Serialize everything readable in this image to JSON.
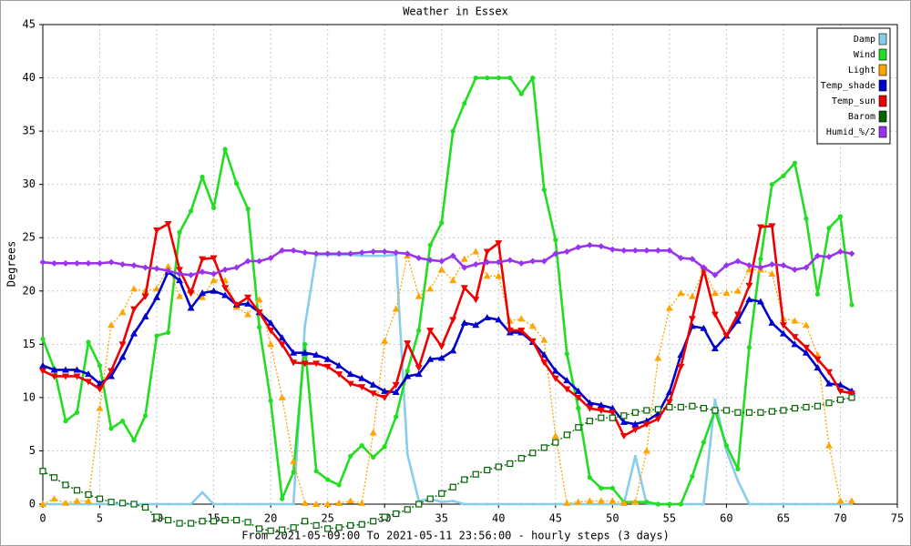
{
  "chart_data": {
    "type": "line",
    "title": "Weather in Essex",
    "y_label": "Degrees",
    "x_label": "From 2021-05-09:00 To 2021-05-11 23:56:00 - hourly steps (3 days)",
    "x": [
      0,
      1,
      2,
      3,
      4,
      5,
      6,
      7,
      8,
      9,
      10,
      11,
      12,
      13,
      14,
      15,
      16,
      17,
      18,
      19,
      20,
      21,
      22,
      23,
      24,
      25,
      26,
      27,
      28,
      29,
      30,
      31,
      32,
      33,
      34,
      35,
      36,
      37,
      38,
      39,
      40,
      41,
      42,
      43,
      44,
      45,
      46,
      47,
      48,
      49,
      50,
      51,
      52,
      53,
      54,
      55,
      56,
      57,
      58,
      59,
      60,
      61,
      62,
      63,
      64,
      65,
      66,
      67,
      68,
      69,
      70,
      71
    ],
    "xlim": [
      0,
      75
    ],
    "xticks": [
      0,
      5,
      10,
      15,
      20,
      25,
      30,
      35,
      40,
      45,
      50,
      55,
      60,
      65,
      70,
      75
    ],
    "ylim": [
      0,
      45
    ],
    "yticks": [
      0,
      5,
      10,
      15,
      20,
      25,
      30,
      35,
      40,
      45
    ],
    "grid": true,
    "legend": "top-right",
    "series": [
      {
        "name": "Damp",
        "color": "#87ceeb",
        "marker": "dot",
        "dashed": false,
        "values": [
          0,
          0,
          0,
          0,
          0,
          0,
          0,
          0,
          0,
          0,
          0,
          0,
          0,
          0,
          1.1,
          0,
          0,
          0,
          0,
          0,
          0,
          0,
          0,
          16.7,
          23.4,
          23.4,
          23.4,
          23.4,
          23.3,
          23.3,
          23.3,
          23.4,
          4.7,
          0.3,
          0.5,
          0.2,
          0.3,
          0,
          0,
          0,
          0,
          0,
          0,
          0,
          0,
          0,
          0,
          0,
          0,
          0,
          0,
          0,
          4.5,
          0,
          0,
          0,
          0,
          0,
          0,
          9.8,
          5,
          2.2,
          0,
          0,
          0,
          0,
          0,
          0,
          0,
          0,
          0,
          0
        ]
      },
      {
        "name": "Wind",
        "color": "#22dd22",
        "marker": "circle",
        "dashed": false,
        "values": [
          15.5,
          12.7,
          7.8,
          8.6,
          15.2,
          13,
          7.1,
          7.8,
          6,
          8.3,
          15.8,
          16.1,
          25.5,
          27.5,
          30.7,
          27.8,
          33.3,
          30.1,
          27.7,
          16.6,
          9.7,
          0.5,
          3,
          15,
          3.1,
          2.3,
          1.8,
          4.5,
          5.5,
          4.4,
          5.4,
          8.2,
          12.5,
          16.3,
          24.3,
          26.4,
          35,
          37.6,
          40,
          40,
          40,
          40,
          38.5,
          40,
          29.5,
          24.8,
          14.1,
          9,
          2.5,
          1.5,
          1.5,
          0.2,
          0.2,
          0.2,
          0,
          0,
          0,
          2.6,
          5.8,
          8.8,
          5.5,
          3.3,
          14.7,
          23,
          30,
          30.8,
          32,
          26.8,
          19.7,
          25.9,
          27,
          18.7
        ]
      },
      {
        "name": "Light",
        "color": "#ffa500",
        "marker": "up",
        "dashed": true,
        "values": [
          0,
          0.5,
          0.1,
          0.3,
          0.3,
          9,
          16.8,
          18,
          20.2,
          20,
          20.2,
          22.3,
          19.5,
          20,
          19.4,
          21,
          21,
          18.5,
          17.8,
          19.2,
          15,
          10,
          4,
          0.1,
          0,
          0,
          0.1,
          0.3,
          0.1,
          6.7,
          15.3,
          18.3,
          23.3,
          19.5,
          20.2,
          22,
          21,
          23,
          23.7,
          21.4,
          21.4,
          17.2,
          17.4,
          16.7,
          15.4,
          6.4,
          0.1,
          0.2,
          0.3,
          0.3,
          0.3,
          0.1,
          0.2,
          5,
          13.7,
          18.4,
          19.8,
          19.5,
          22,
          19.8,
          19.8,
          20,
          22,
          22,
          21.6,
          17.4,
          17.2,
          16.8,
          14,
          5.5,
          0.3,
          0.3
        ]
      },
      {
        "name": "Temp_shade",
        "color": "#0000cc",
        "marker": "up",
        "dashed": false,
        "values": [
          13,
          12.6,
          12.6,
          12.6,
          12.2,
          11.3,
          12,
          13.8,
          16,
          17.6,
          19.4,
          21.8,
          21,
          18.4,
          19.8,
          20,
          19.6,
          18.7,
          18.8,
          18,
          17,
          15.6,
          14.2,
          14.2,
          14,
          13.6,
          13,
          12.2,
          11.8,
          11.2,
          10.6,
          10.5,
          12,
          12.2,
          13.6,
          13.7,
          14.4,
          17,
          16.8,
          17.5,
          17.3,
          16.1,
          16.1,
          15.2,
          14,
          12.5,
          11.6,
          10.6,
          9.5,
          9.3,
          9,
          7.7,
          7.5,
          7.8,
          8.5,
          10.5,
          14,
          16.7,
          16.5,
          14.6,
          15.8,
          17.2,
          19.2,
          19,
          17,
          16,
          15,
          14.2,
          12.8,
          11.3,
          11.2,
          10.6
        ]
      },
      {
        "name": "Temp_sun",
        "color": "#ee0000",
        "marker": "down",
        "dashed": false,
        "values": [
          12.5,
          12,
          12,
          12,
          11.5,
          10.8,
          12.5,
          15,
          18.3,
          19.5,
          25.7,
          26.3,
          22,
          19.8,
          23,
          23.1,
          20.3,
          18.7,
          19.4,
          18,
          16.3,
          15,
          13.3,
          13.2,
          13.2,
          12.9,
          12.2,
          11.3,
          11,
          10.4,
          10,
          11.2,
          15.1,
          12.8,
          16.3,
          14.8,
          17.3,
          20.3,
          19.2,
          23.7,
          24.5,
          16.3,
          16.3,
          15.3,
          13.3,
          11.8,
          10.8,
          10,
          9,
          8.8,
          8.6,
          6.4,
          7,
          7.5,
          8,
          9.6,
          12.9,
          17.4,
          22,
          17.8,
          15.8,
          17.8,
          20.5,
          26,
          26.1,
          16.8,
          15.7,
          14.7,
          13.6,
          12.4,
          10.6,
          10.4
        ]
      },
      {
        "name": "Barom",
        "color": "#006400",
        "marker": "square",
        "dashed": true,
        "values": [
          3.1,
          2.5,
          1.8,
          1.3,
          0.9,
          0.5,
          0.2,
          0.1,
          0,
          -0.3,
          -1.2,
          -1.5,
          -1.8,
          -1.8,
          -1.6,
          -1.6,
          -1.5,
          -1.5,
          -1.7,
          -2.3,
          -2.5,
          -2.4,
          -2.2,
          -1.6,
          -2,
          -2.3,
          -2.2,
          -2,
          -1.9,
          -1.6,
          -1.2,
          -0.9,
          -0.5,
          0,
          0.5,
          1,
          1.6,
          2.3,
          2.8,
          3.2,
          3.5,
          3.8,
          4.3,
          4.8,
          5.3,
          5.8,
          6.5,
          7.2,
          7.8,
          8.1,
          8.1,
          8.3,
          8.6,
          8.8,
          8.9,
          9.1,
          9.1,
          9.2,
          9,
          8.8,
          8.8,
          8.6,
          8.6,
          8.6,
          8.7,
          8.8,
          9,
          9.1,
          9.2,
          9.5,
          9.8,
          10
        ]
      },
      {
        "name": "Humid_%/2",
        "color": "#9933ee",
        "marker": "diamond",
        "dashed": false,
        "values": [
          22.7,
          22.6,
          22.6,
          22.6,
          22.6,
          22.6,
          22.7,
          22.5,
          22.4,
          22.2,
          22.1,
          21.9,
          21.6,
          21.5,
          21.8,
          21.6,
          22,
          22.2,
          22.8,
          22.8,
          23.1,
          23.8,
          23.8,
          23.6,
          23.5,
          23.5,
          23.5,
          23.5,
          23.6,
          23.7,
          23.7,
          23.6,
          23.5,
          23.1,
          22.9,
          22.8,
          23.3,
          22.2,
          22.5,
          22.7,
          22.7,
          22.9,
          22.6,
          22.8,
          22.8,
          23.5,
          23.7,
          24.1,
          24.3,
          24.2,
          23.9,
          23.8,
          23.8,
          23.8,
          23.8,
          23.8,
          23.1,
          23,
          22.2,
          21.5,
          22.4,
          22.8,
          22.4,
          22.2,
          22.5,
          22.4,
          22,
          22.2,
          23.3,
          23.2,
          23.7,
          23.5
        ]
      }
    ]
  }
}
